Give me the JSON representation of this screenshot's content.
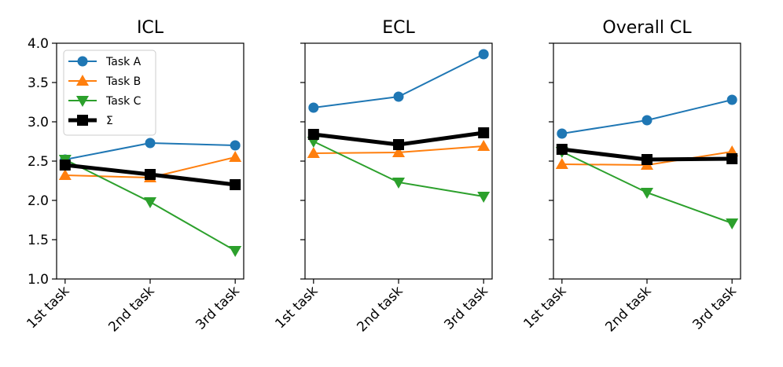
{
  "chart_data": {
    "type": "line",
    "x_categories": [
      "1st task",
      "2nd task",
      "3rd task"
    ],
    "ylim": [
      1.0,
      4.0
    ],
    "yticks": [
      1.0,
      1.5,
      2.0,
      2.5,
      3.0,
      3.5,
      4.0
    ],
    "ytick_labels": [
      "1.0",
      "1.5",
      "2.0",
      "2.5",
      "3.0",
      "3.5",
      "4.0"
    ],
    "sharey": true,
    "grid": false,
    "legend": {
      "placement": "upper-left of first panel",
      "entries": [
        {
          "name": "Task A",
          "color": "#1f77b4",
          "marker": "circle"
        },
        {
          "name": "Task B",
          "color": "#ff7f0e",
          "marker": "triangle-up"
        },
        {
          "name": "Task C",
          "color": "#2ca02c",
          "marker": "triangle-down"
        },
        {
          "name": "Σ",
          "color": "#000000",
          "marker": "square"
        }
      ]
    },
    "panels": [
      {
        "title": "ICL",
        "series": [
          {
            "name": "Task A",
            "color": "#1f77b4",
            "values": [
              2.52,
              2.73,
              2.7
            ]
          },
          {
            "name": "Task B",
            "color": "#ff7f0e",
            "values": [
              2.32,
              2.29,
              2.55
            ]
          },
          {
            "name": "Task C",
            "color": "#2ca02c",
            "values": [
              2.52,
              1.98,
              1.36
            ]
          },
          {
            "name": "Σ",
            "color": "#000000",
            "values": [
              2.45,
              2.33,
              2.2
            ]
          }
        ]
      },
      {
        "title": "ECL",
        "series": [
          {
            "name": "Task A",
            "color": "#1f77b4",
            "values": [
              3.18,
              3.32,
              3.86
            ]
          },
          {
            "name": "Task B",
            "color": "#ff7f0e",
            "values": [
              2.6,
              2.61,
              2.69
            ]
          },
          {
            "name": "Task C",
            "color": "#2ca02c",
            "values": [
              2.75,
              2.23,
              2.05
            ]
          },
          {
            "name": "Σ",
            "color": "#000000",
            "values": [
              2.84,
              2.71,
              2.86
            ]
          }
        ]
      },
      {
        "title": "Overall CL",
        "series": [
          {
            "name": "Task A",
            "color": "#1f77b4",
            "values": [
              2.85,
              3.02,
              3.28
            ]
          },
          {
            "name": "Task B",
            "color": "#ff7f0e",
            "values": [
              2.46,
              2.45,
              2.62
            ]
          },
          {
            "name": "Task C",
            "color": "#2ca02c",
            "values": [
              2.62,
              2.1,
              1.71
            ]
          },
          {
            "name": "Σ",
            "color": "#000000",
            "values": [
              2.65,
              2.52,
              2.53
            ]
          }
        ]
      }
    ]
  }
}
